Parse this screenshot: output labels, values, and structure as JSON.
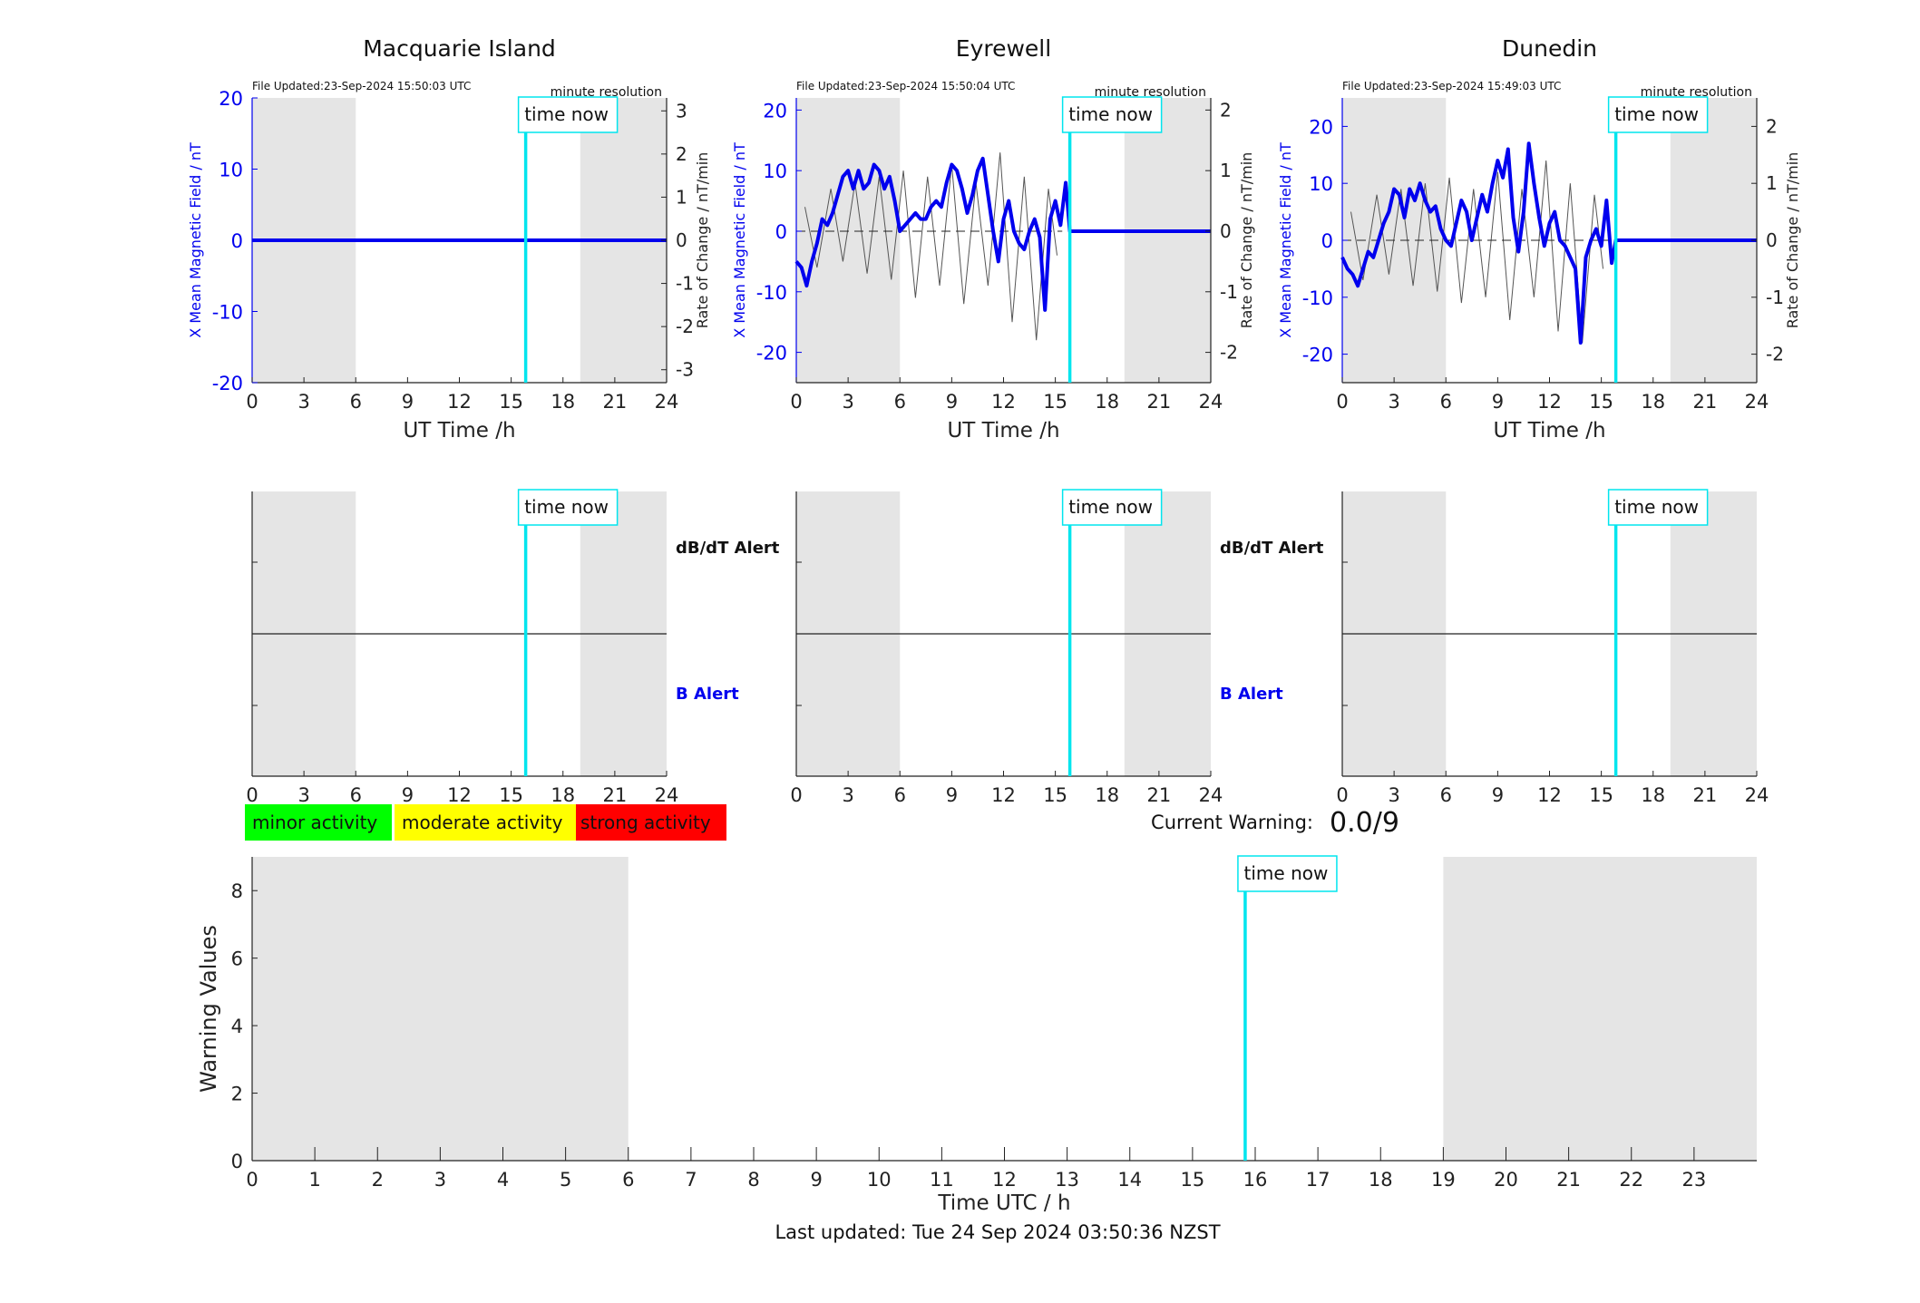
{
  "footer": {
    "last_updated": "Last updated: Tue 24 Sep 2024 03:50:36 NZST"
  },
  "legend_badges": [
    {
      "label": "minor activity",
      "color": "#00ff00"
    },
    {
      "label": "moderate activity",
      "color": "#ffff00"
    },
    {
      "label": "strong activity",
      "color": "#ff0000"
    }
  ],
  "current_warning": {
    "label": "Current Warning:",
    "value": "0.0/9"
  },
  "colors": {
    "field": "#0000ee",
    "rate": "#555555",
    "time_now": "#00e5ee",
    "shade": "#e5e5e5"
  },
  "time_now_label": "time now",
  "chart_data": [
    {
      "type": "line",
      "title": "Macquarie Island",
      "file_updated": "File Updated:23-Sep-2024 15:50:03 UTC",
      "resolution": "minute resolution",
      "xlabel": "UT Time /h",
      "ylabel": "X Mean Magnetic Field / nT",
      "y2label": "Rate of Change / nT/min",
      "xlim": [
        0,
        24
      ],
      "ylim": [
        -20,
        20
      ],
      "y2lim": [
        -3.3,
        3.3
      ],
      "xticks": [
        "0",
        "3",
        "6",
        "9",
        "12",
        "15",
        "18",
        "21",
        "24"
      ],
      "yticks": [
        20,
        10,
        0,
        -10,
        -20
      ],
      "y2ticks": [
        3,
        2,
        1,
        0,
        -1,
        -2,
        -3
      ],
      "shaded_hours": [
        [
          0,
          6
        ],
        [
          19,
          24
        ]
      ],
      "time_now": 15.84,
      "series": [
        {
          "name": "X Mean Magnetic Field / nT",
          "x": [
            0,
            24
          ],
          "y": [
            0,
            0
          ]
        }
      ]
    },
    {
      "type": "line",
      "title": "Eyrewell",
      "file_updated": "File Updated:23-Sep-2024 15:50:04 UTC",
      "resolution": "minute resolution",
      "xlabel": "UT Time /h",
      "ylabel": "X Mean Magnetic Field / nT",
      "y2label": "Rate of Change / nT/min",
      "xlim": [
        0,
        24
      ],
      "ylim": [
        -25,
        22
      ],
      "y2lim": [
        -2.5,
        2.2
      ],
      "xticks": [
        "0",
        "3",
        "6",
        "9",
        "12",
        "15",
        "18",
        "21",
        "24"
      ],
      "yticks": [
        20,
        10,
        0,
        -10,
        -20
      ],
      "y2ticks": [
        2,
        1,
        0,
        -1,
        -2
      ],
      "shaded_hours": [
        [
          0,
          6
        ],
        [
          19,
          24
        ]
      ],
      "time_now": 15.84,
      "series": [
        {
          "name": "X Mean Magnetic Field / nT",
          "x": [
            0,
            0.3,
            0.6,
            0.9,
            1.2,
            1.5,
            1.8,
            2.1,
            2.4,
            2.7,
            3.0,
            3.3,
            3.6,
            3.9,
            4.2,
            4.5,
            4.8,
            5.1,
            5.4,
            5.7,
            6.0,
            6.3,
            6.6,
            6.9,
            7.2,
            7.5,
            7.8,
            8.1,
            8.4,
            8.7,
            9.0,
            9.3,
            9.6,
            9.9,
            10.2,
            10.5,
            10.8,
            11.1,
            11.4,
            11.7,
            12.0,
            12.3,
            12.6,
            12.9,
            13.2,
            13.5,
            13.8,
            14.1,
            14.4,
            14.7,
            15.0,
            15.3,
            15.6,
            15.84,
            24
          ],
          "y": [
            -5,
            -6,
            -9,
            -5,
            -2,
            2,
            1,
            3,
            6,
            9,
            10,
            7,
            10,
            7,
            8,
            11,
            10,
            7,
            9,
            5,
            0,
            1,
            2,
            3,
            2,
            2,
            4,
            5,
            4,
            8,
            11,
            10,
            7,
            3,
            6,
            10,
            12,
            6,
            0,
            -5,
            2,
            5,
            0,
            -2,
            -3,
            0,
            2,
            -1,
            -13,
            2,
            5,
            1,
            8,
            0,
            0
          ]
        },
        {
          "name": "Rate of Change / nT/min",
          "x": [
            0.5,
            1.2,
            2.0,
            2.7,
            3.4,
            4.1,
            4.8,
            5.5,
            6.2,
            6.9,
            7.6,
            8.3,
            9.0,
            9.7,
            10.4,
            11.1,
            11.8,
            12.5,
            13.2,
            13.9,
            14.6,
            15.1
          ],
          "y": [
            0.4,
            -0.6,
            0.7,
            -0.5,
            0.8,
            -0.7,
            0.9,
            -0.8,
            1.0,
            -1.1,
            0.9,
            -0.9,
            1.1,
            -1.2,
            0.8,
            -0.9,
            1.3,
            -1.5,
            0.9,
            -1.8,
            0.7,
            -0.4
          ]
        }
      ]
    },
    {
      "type": "line",
      "title": "Dunedin",
      "file_updated": "File Updated:23-Sep-2024 15:49:03 UTC",
      "resolution": "minute resolution",
      "xlabel": "UT Time /h",
      "ylabel": "X Mean Magnetic Field / nT",
      "y2label": "Rate of Change / nT/min",
      "xlim": [
        0,
        24
      ],
      "ylim": [
        -25,
        25
      ],
      "y2lim": [
        -2.5,
        2.5
      ],
      "xticks": [
        "0",
        "3",
        "6",
        "9",
        "12",
        "15",
        "18",
        "21",
        "24"
      ],
      "yticks": [
        20,
        10,
        0,
        -10,
        -20
      ],
      "y2ticks": [
        2,
        1,
        0,
        -1,
        -2
      ],
      "shaded_hours": [
        [
          0,
          6
        ],
        [
          19,
          24
        ]
      ],
      "time_now": 15.84,
      "series": [
        {
          "name": "X Mean Magnetic Field / nT",
          "x": [
            0,
            0.3,
            0.6,
            0.9,
            1.2,
            1.5,
            1.8,
            2.1,
            2.4,
            2.7,
            3.0,
            3.3,
            3.6,
            3.9,
            4.2,
            4.5,
            4.8,
            5.1,
            5.4,
            5.7,
            6.0,
            6.3,
            6.6,
            6.9,
            7.2,
            7.5,
            7.8,
            8.1,
            8.4,
            8.7,
            9.0,
            9.3,
            9.6,
            9.9,
            10.2,
            10.5,
            10.8,
            11.1,
            11.4,
            11.7,
            12.0,
            12.3,
            12.6,
            12.9,
            13.2,
            13.5,
            13.8,
            14.1,
            14.4,
            14.7,
            15.0,
            15.3,
            15.6,
            15.84,
            24
          ],
          "y": [
            -3,
            -5,
            -6,
            -8,
            -5,
            -2,
            -3,
            0,
            3,
            5,
            9,
            8,
            4,
            9,
            7,
            10,
            7,
            5,
            6,
            2,
            0,
            -1,
            3,
            7,
            5,
            0,
            4,
            8,
            5,
            10,
            14,
            11,
            16,
            4,
            -2,
            5,
            17,
            10,
            4,
            -1,
            3,
            5,
            0,
            -1,
            -3,
            -5,
            -18,
            -3,
            0,
            2,
            -1,
            7,
            -4,
            0,
            0
          ]
        },
        {
          "name": "Rate of Change / nT/min",
          "x": [
            0.5,
            1.2,
            2.0,
            2.7,
            3.4,
            4.1,
            4.8,
            5.5,
            6.2,
            6.9,
            7.6,
            8.3,
            9.0,
            9.7,
            10.4,
            11.1,
            11.8,
            12.5,
            13.2,
            13.9,
            14.6,
            15.1
          ],
          "y": [
            0.5,
            -0.7,
            0.8,
            -0.6,
            0.9,
            -0.8,
            1.0,
            -0.9,
            1.1,
            -1.1,
            0.9,
            -1.0,
            1.2,
            -1.4,
            0.9,
            -1.0,
            1.4,
            -1.6,
            1.0,
            -1.8,
            0.8,
            -0.5
          ]
        }
      ]
    },
    {
      "type": "line",
      "title": "",
      "xlim": [
        0,
        24
      ],
      "xticks": [
        "0",
        "3",
        "6",
        "9",
        "12",
        "15",
        "18",
        "21",
        "24"
      ],
      "labels": [
        {
          "text": "dB/dT Alert",
          "color": "#111111"
        },
        {
          "text": "B Alert",
          "color": "#0000ee"
        }
      ],
      "shaded_hours": [
        [
          0,
          6
        ],
        [
          19,
          24
        ]
      ],
      "time_now": 15.84
    },
    {
      "type": "line",
      "title": "",
      "xlim": [
        0,
        24
      ],
      "xticks": [
        "0",
        "3",
        "6",
        "9",
        "12",
        "15",
        "18",
        "21",
        "24"
      ],
      "labels": [
        {
          "text": "dB/dT Alert",
          "color": "#111111"
        },
        {
          "text": "B Alert",
          "color": "#0000ee"
        }
      ],
      "shaded_hours": [
        [
          0,
          6
        ],
        [
          19,
          24
        ]
      ],
      "time_now": 15.84
    },
    {
      "type": "line",
      "title": "",
      "xlim": [
        0,
        24
      ],
      "xticks": [
        "0",
        "3",
        "6",
        "9",
        "12",
        "15",
        "18",
        "21",
        "24"
      ],
      "labels": [],
      "shaded_hours": [
        [
          0,
          6
        ],
        [
          19,
          24
        ]
      ],
      "time_now": 15.84
    },
    {
      "type": "bar",
      "title": "",
      "xlabel": "Time UTC / h",
      "ylabel": "Warning Values",
      "xlim": [
        0,
        24
      ],
      "ylim": [
        0,
        9
      ],
      "xticks": [
        "0",
        "1",
        "2",
        "3",
        "4",
        "5",
        "6",
        "7",
        "8",
        "9",
        "10",
        "11",
        "12",
        "13",
        "14",
        "15",
        "16",
        "17",
        "18",
        "19",
        "20",
        "21",
        "22",
        "23"
      ],
      "yticks": [
        0,
        2,
        4,
        6,
        8
      ],
      "shaded_hours": [
        [
          0,
          6
        ],
        [
          19,
          24
        ]
      ],
      "time_now": 15.84,
      "values": []
    }
  ]
}
